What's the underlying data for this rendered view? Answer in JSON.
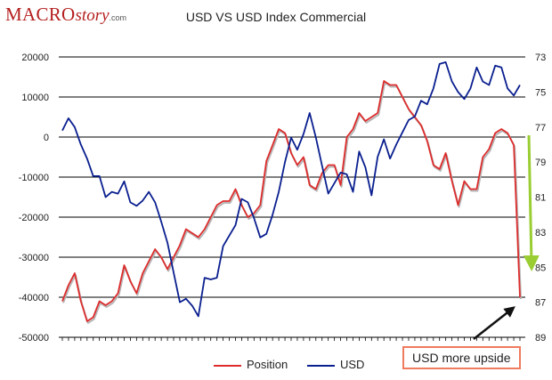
{
  "branding": {
    "logo_macro": "MACRO",
    "logo_story": "story",
    "logo_suffix": ".com"
  },
  "callout": {
    "text": "USD more upside"
  },
  "colors": {
    "position": "#dd2c2c",
    "usd": "#0a1f8f",
    "arrow_green": "#9acd32",
    "arrow_black": "#111111",
    "callout_border": "#f07a5e"
  },
  "chart_data": {
    "type": "line",
    "title": "USD VS USD Index Commercial",
    "x_categories": 75,
    "left_axis": {
      "range": [
        -50000,
        20000
      ],
      "ticks": [
        20000,
        10000,
        0,
        -10000,
        -20000,
        -30000,
        -40000,
        -50000
      ],
      "tick_labels": [
        "20000",
        "10000",
        "0",
        "-10000",
        "-20000",
        "-30000",
        "-40000",
        "-50000"
      ]
    },
    "right_axis": {
      "inverted": true,
      "range": [
        73,
        89
      ],
      "ticks": [
        73,
        75,
        77,
        79,
        81,
        83,
        85,
        87,
        89
      ],
      "tick_labels": [
        "73",
        "75",
        "77",
        "79",
        "81",
        "83",
        "85",
        "87",
        "89"
      ]
    },
    "series": [
      {
        "name": "Position",
        "axis": "left",
        "values": [
          -41000,
          -37000,
          -34000,
          -41000,
          -46000,
          -45000,
          -41000,
          -42000,
          -41000,
          -39000,
          -32000,
          -36000,
          -39000,
          -34000,
          -31000,
          -28000,
          -30000,
          -33000,
          -30000,
          -27000,
          -23000,
          -24000,
          -25000,
          -23000,
          -20000,
          -17000,
          -16000,
          -16000,
          -13000,
          -17000,
          -20000,
          -19000,
          -17000,
          -6000,
          -2000,
          2000,
          1000,
          -4000,
          -7000,
          -5000,
          -12000,
          -13000,
          -9000,
          -7000,
          -7000,
          -12000,
          0,
          2000,
          6000,
          4000,
          5000,
          6000,
          14000,
          13000,
          13000,
          10000,
          7000,
          5000,
          3000,
          -1000,
          -7000,
          -8000,
          -4000,
          -11000,
          -17000,
          -11000,
          -13000,
          -13000,
          -5000,
          -3000,
          1000,
          2000,
          1000,
          -2000,
          -40000
        ]
      },
      {
        "name": "USD",
        "axis": "right",
        "values": [
          77.2,
          76.5,
          77.0,
          78.0,
          78.8,
          79.8,
          79.8,
          81.0,
          80.7,
          80.8,
          80.1,
          81.3,
          81.5,
          81.2,
          80.7,
          81.3,
          82.4,
          83.6,
          85.3,
          87.0,
          86.8,
          87.2,
          87.8,
          85.6,
          85.7,
          85.6,
          83.8,
          83.2,
          82.6,
          81.1,
          81.3,
          82.2,
          83.3,
          83.1,
          82.0,
          80.7,
          79.0,
          77.6,
          78.3,
          77.4,
          76.2,
          77.6,
          79.2,
          80.8,
          80.2,
          79.6,
          79.7,
          80.7,
          78.4,
          79.3,
          80.9,
          78.7,
          77.7,
          78.8,
          78.0,
          77.3,
          76.6,
          76.4,
          75.5,
          75.7,
          74.8,
          73.4,
          73.3,
          74.4,
          75.0,
          75.4,
          74.8,
          73.6,
          74.4,
          74.6,
          73.5,
          73.6,
          74.8,
          75.2,
          74.6
        ]
      }
    ],
    "legend": [
      "Position",
      "USD"
    ],
    "legend_position": "bottom",
    "grid": "horizontal"
  }
}
